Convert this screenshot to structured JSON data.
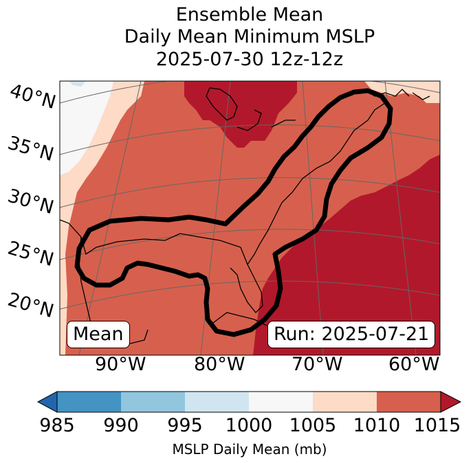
{
  "title": {
    "line1": "Ensemble Mean",
    "line2": "Daily Mean Minimum MSLP",
    "line3": "2025-07-30 12z-12z"
  },
  "map": {
    "lat_labels": [
      "40°N",
      "35°N",
      "30°N",
      "25°N",
      "20°N"
    ],
    "lon_labels": [
      "90°W",
      "80°W",
      "70°W",
      "60°W"
    ],
    "mean_box": "Mean",
    "run_box": "Run: 2025-07-21"
  },
  "colorbar": {
    "label": "MSLP Daily Mean (mb)",
    "ticks": [
      "985",
      "990",
      "995",
      "1000",
      "1005",
      "1010",
      "1015"
    ],
    "colors": [
      "#4393c3",
      "#92c5de",
      "#d1e5f0",
      "#f7f7f7",
      "#fddbc7",
      "#d6604d",
      "#b2182b"
    ],
    "under_color": "#2166ac",
    "over_color": "#b2182b"
  }
}
